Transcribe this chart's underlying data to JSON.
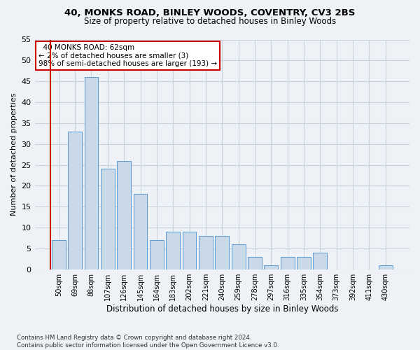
{
  "title1": "40, MONKS ROAD, BINLEY WOODS, COVENTRY, CV3 2BS",
  "title2": "Size of property relative to detached houses in Binley Woods",
  "xlabel": "Distribution of detached houses by size in Binley Woods",
  "ylabel": "Number of detached properties",
  "footer": "Contains HM Land Registry data © Crown copyright and database right 2024.\nContains public sector information licensed under the Open Government Licence v3.0.",
  "categories": [
    "50sqm",
    "69sqm",
    "88sqm",
    "107sqm",
    "126sqm",
    "145sqm",
    "164sqm",
    "183sqm",
    "202sqm",
    "221sqm",
    "240sqm",
    "259sqm",
    "278sqm",
    "297sqm",
    "316sqm",
    "335sqm",
    "354sqm",
    "373sqm",
    "392sqm",
    "411sqm",
    "430sqm"
  ],
  "values": [
    7,
    33,
    46,
    24,
    26,
    18,
    7,
    9,
    9,
    8,
    8,
    6,
    3,
    1,
    3,
    3,
    4,
    0,
    0,
    0,
    1
  ],
  "bar_color": "#c9d9e8",
  "bar_edge_color": "#5b9bd5",
  "annotation_text": "  40 MONKS ROAD: 62sqm\n← 2% of detached houses are smaller (3)\n98% of semi-detached houses are larger (193) →",
  "annotation_box_color": "#ffffff",
  "annotation_box_edge": "#cc0000",
  "vline_color": "#cc0000",
  "ylim": [
    0,
    55
  ],
  "yticks": [
    0,
    5,
    10,
    15,
    20,
    25,
    30,
    35,
    40,
    45,
    50,
    55
  ],
  "grid_color": "#c8d4dc",
  "bg_color": "#eef2f7",
  "plot_bg_color": "#eef2f7"
}
